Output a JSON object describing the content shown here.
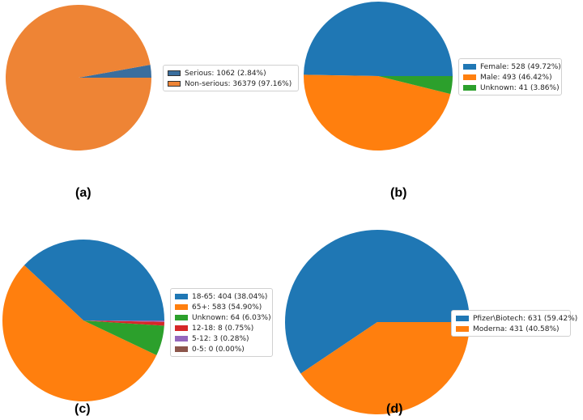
{
  "chart_data": [
    {
      "type": "pie",
      "panel_label": "(a)",
      "legend": "right",
      "slices": [
        {
          "label": "Serious: 1062 (2.84%)",
          "value": 1062,
          "color": "#3a6e9e"
        },
        {
          "label": "Non-serious: 36379 (97.16%)",
          "value": 36379,
          "color": "#ee8435"
        }
      ]
    },
    {
      "type": "pie",
      "panel_label": "(b)",
      "legend": "right",
      "slices": [
        {
          "label": "Female: 528 (49.72%)",
          "value": 528,
          "color": "#1f77b4"
        },
        {
          "label": "Male: 493 (46.42%)",
          "value": 493,
          "color": "#ff7f0e"
        },
        {
          "label": "Unknown: 41 (3.86%)",
          "value": 41,
          "color": "#2ca02c"
        }
      ]
    },
    {
      "type": "pie",
      "panel_label": "(c)",
      "legend": "right",
      "slices": [
        {
          "label": "18-65: 404 (38.04%)",
          "value": 404,
          "color": "#1f77b4"
        },
        {
          "label": "65+: 583 (54.90%)",
          "value": 583,
          "color": "#ff7f0e"
        },
        {
          "label": "Unknown: 64 (6.03%)",
          "value": 64,
          "color": "#2ca02c"
        },
        {
          "label": "12-18: 8 (0.75%)",
          "value": 8,
          "color": "#d62728"
        },
        {
          "label": "5-12: 3 (0.28%)",
          "value": 3,
          "color": "#9467bd"
        },
        {
          "label": "0-5: 0 (0.00%)",
          "value": 0,
          "color": "#8c564b"
        }
      ]
    },
    {
      "type": "pie",
      "panel_label": "(d)",
      "legend": "right",
      "slices": [
        {
          "label": "Pfizer\\Biotech: 631 (59.42%)",
          "value": 631,
          "color": "#1f77b4"
        },
        {
          "label": "Moderna: 431 (40.58%)",
          "value": 431,
          "color": "#ff7f0e"
        }
      ]
    }
  ]
}
